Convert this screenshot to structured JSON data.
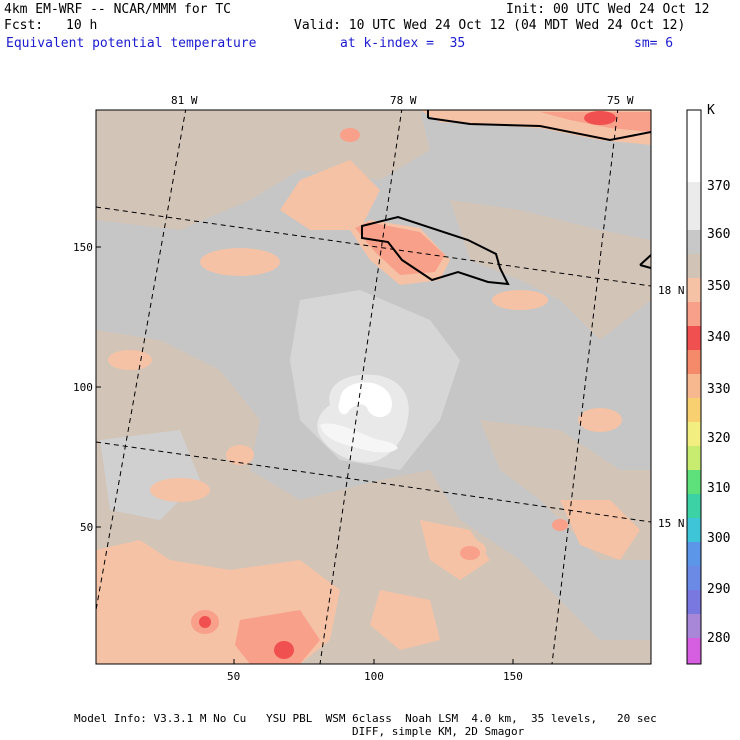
{
  "header": {
    "model": "4km EM-WRF -- NCAR/MMM for TC",
    "init": "Init: 00 UTC Wed 24 Oct 12",
    "fcst_label": "Fcst:",
    "fcst_value": "10 h",
    "valid": "Valid: 10 UTC Wed 24 Oct 12 (04 MDT Wed 24 Oct 12)",
    "field": "Equivalent potential temperature",
    "level": "at k-index =  35",
    "smoothing": "sm= 6"
  },
  "colorbar": {
    "unit": "K",
    "labels": [
      "370",
      "360",
      "350",
      "340",
      "330",
      "320",
      "310",
      "300",
      "290",
      "280"
    ],
    "colors": [
      "#ffffff",
      "#ebebeb",
      "#c8c8c8",
      "#d2c3b7",
      "#f5c2a6",
      "#f8a08a",
      "#f05050",
      "#f48a6a",
      "#f7b890",
      "#f9d070",
      "#f2ee80",
      "#c8ec70",
      "#5ee07a",
      "#3cd2a6",
      "#3ec6d8",
      "#5c96e8",
      "#7878e0",
      "#a886d8",
      "#d65ee0"
    ]
  },
  "map": {
    "lon_labels": [
      "81 W",
      "78 W",
      "75 W"
    ],
    "lat_labels": [
      "18 N",
      "15 N"
    ],
    "y_ticks": [
      "150",
      "100",
      "50"
    ],
    "x_ticks": [
      "50",
      "100",
      "150"
    ]
  },
  "footer": {
    "line1": "Model Info: V3.3.1 M No Cu   YSU PBL  WSM 6class  Noah LSM  4.0 km,  35 levels,   20 sec",
    "line2": "DIFF, simple KM, 2D Smagor"
  }
}
